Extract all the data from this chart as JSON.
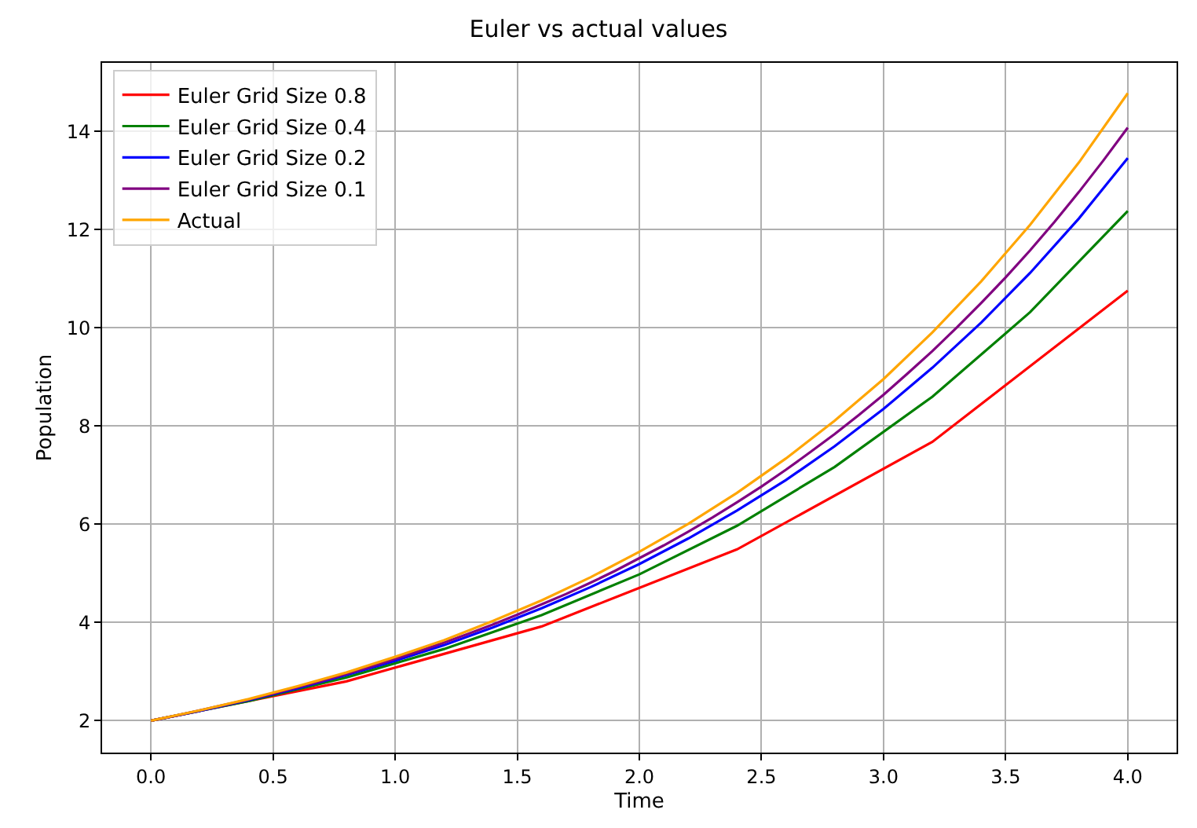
{
  "chart_data": {
    "type": "line",
    "title": "Euler vs actual values",
    "xlabel": "Time",
    "ylabel": "Population",
    "xlim": [
      -0.2,
      4.2
    ],
    "ylim": [
      1.35,
      15.4
    ],
    "xticks": [
      {
        "value": 0,
        "label": "0.0"
      },
      {
        "value": 0.5,
        "label": "0.5"
      },
      {
        "value": 1,
        "label": "1.0"
      },
      {
        "value": 1.5,
        "label": "1.5"
      },
      {
        "value": 2,
        "label": "2.0"
      },
      {
        "value": 2.5,
        "label": "2.5"
      },
      {
        "value": 3,
        "label": "3.0"
      },
      {
        "value": 3.5,
        "label": "3.5"
      },
      {
        "value": 4,
        "label": "4.0"
      }
    ],
    "yticks": [
      2,
      4,
      6,
      8,
      10,
      12,
      14
    ],
    "grid": true,
    "legend": "top left",
    "marker": "none",
    "line_style": "solid",
    "series": [
      {
        "name": "Euler Grid Size 0.8",
        "color": "#ff0000",
        "x": [
          0,
          0.8,
          1.6,
          2.4,
          3.2,
          4.0
        ],
        "values": [
          2,
          2.8,
          3.92,
          5.49,
          7.68,
          10.76
        ]
      },
      {
        "name": "Euler Grid Size 0.4",
        "color": "#008000",
        "x": [
          0,
          0.4,
          0.8,
          1.2,
          1.6,
          2.0,
          2.4,
          2.8,
          3.2,
          3.6,
          4.0
        ],
        "values": [
          2,
          2.4,
          2.88,
          3.46,
          4.15,
          4.98,
          5.97,
          7.17,
          8.6,
          10.32,
          12.38
        ]
      },
      {
        "name": "Euler Grid Size 0.2",
        "color": "#0000ff",
        "x": [
          0,
          0.2,
          0.4,
          0.6,
          0.8,
          1.0,
          1.2,
          1.4,
          1.6,
          1.8,
          2.0,
          2.2,
          2.4,
          2.6,
          2.8,
          3.0,
          3.2,
          3.4,
          3.6,
          3.8,
          4.0
        ],
        "values": [
          2,
          2.2,
          2.42,
          2.66,
          2.93,
          3.22,
          3.54,
          3.9,
          4.29,
          4.72,
          5.19,
          5.71,
          6.28,
          6.9,
          7.59,
          8.35,
          9.19,
          10.11,
          11.12,
          12.23,
          13.46
        ]
      },
      {
        "name": "Euler Grid Size 0.1",
        "color": "#800080",
        "x": [
          0,
          0.1,
          0.2,
          0.3,
          0.4,
          0.5,
          0.6,
          0.7,
          0.8,
          0.9,
          1.0,
          1.1,
          1.2,
          1.3,
          1.4,
          1.5,
          1.6,
          1.7,
          1.8,
          1.9,
          2.0,
          2.1,
          2.2,
          2.3,
          2.4,
          2.5,
          2.6,
          2.7,
          2.8,
          2.9,
          3.0,
          3.1,
          3.2,
          3.3,
          3.4,
          3.5,
          3.6,
          3.7,
          3.8,
          3.9,
          4.0
        ],
        "values": [
          2,
          2.1,
          2.21,
          2.32,
          2.43,
          2.55,
          2.68,
          2.81,
          2.95,
          3.1,
          3.26,
          3.42,
          3.59,
          3.77,
          3.96,
          4.16,
          4.37,
          4.58,
          4.81,
          5.05,
          5.31,
          5.57,
          5.85,
          6.14,
          6.45,
          6.77,
          7.11,
          7.47,
          7.84,
          8.23,
          8.64,
          9.08,
          9.53,
          10.01,
          10.51,
          11.03,
          11.58,
          12.16,
          12.77,
          13.41,
          14.08
        ]
      },
      {
        "name": "Actual",
        "color": "#ffa500",
        "x": [
          0,
          0.2,
          0.4,
          0.6,
          0.8,
          1.0,
          1.2,
          1.4,
          1.6,
          1.8,
          2.0,
          2.2,
          2.4,
          2.6,
          2.8,
          3.0,
          3.2,
          3.4,
          3.6,
          3.8,
          4.0
        ],
        "values": [
          2,
          2.21,
          2.44,
          2.7,
          2.98,
          3.3,
          3.64,
          4.03,
          4.45,
          4.92,
          5.44,
          6.01,
          6.64,
          7.34,
          8.11,
          8.96,
          9.91,
          10.95,
          12.1,
          13.37,
          14.78
        ]
      }
    ]
  }
}
